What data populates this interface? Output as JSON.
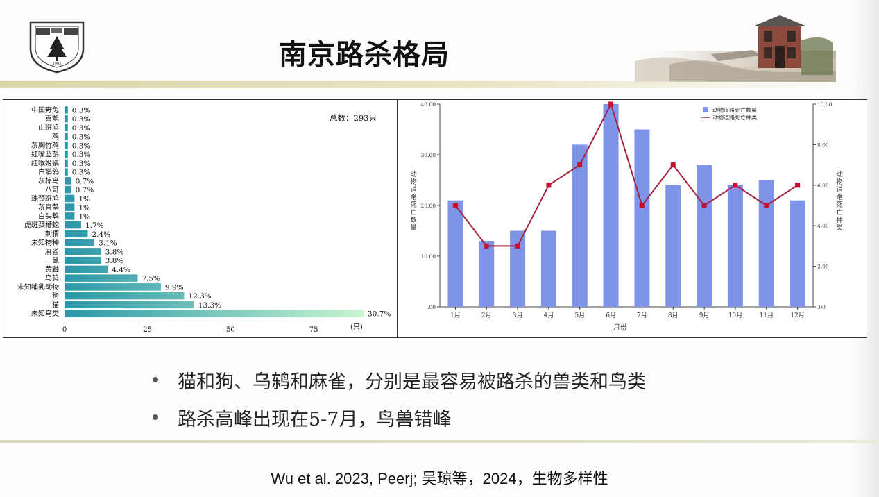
{
  "slide": {
    "title": "南京路杀格局",
    "logo_text": "NANJING UNIVERSITY",
    "logo_year": "1902",
    "bullets": [
      "猫和狗、乌鸫和麻雀，分别是最容易被路杀的兽类和鸟类",
      "路杀高峰出现在5-7月，鸟兽错峰"
    ],
    "citation": "Wu et al. 2023, Peerj; 吴琼等，2024，生物多样性"
  },
  "chart_data": [
    {
      "type": "bar",
      "orientation": "horizontal",
      "categories": [
        "中国野兔",
        "喜鹊",
        "山斑鸠",
        "鸡",
        "灰胸竹鸡",
        "红嘴蓝鹊",
        "红喉姬鹟",
        "白鹡鸰",
        "灰椋鸟",
        "八哥",
        "珠颈斑鸠",
        "灰喜鹊",
        "白头鹎",
        "虎斑颈槽蛇",
        "刺猬",
        "未知物种",
        "麻雀",
        "鼠",
        "黄鼬",
        "乌鸫",
        "未知哺乳动物",
        "狗",
        "猫",
        "未知鸟类"
      ],
      "values": [
        1,
        1,
        1,
        1,
        1,
        1,
        1,
        1,
        2,
        2,
        3,
        3,
        3,
        5,
        7,
        9,
        11,
        11,
        13,
        22,
        29,
        36,
        39,
        90
      ],
      "labels": [
        "0.3%",
        "0.3%",
        "0.3%",
        "0.3%",
        "0.3%",
        "0.3%",
        "0.3%",
        "0.3%",
        "0.7%",
        "0.7%",
        "1%",
        "1%",
        "1%",
        "1.7%",
        "2.4%",
        "3.1%",
        "3.8%",
        "3.8%",
        "4.4%",
        "7.5%",
        "9.9%",
        "12.3%",
        "13.3%",
        "30.7%"
      ],
      "xlim": [
        0,
        90
      ],
      "xticks": [
        "0",
        "25",
        "50",
        "75"
      ],
      "xunit": "(只)",
      "annotation": "总数：293只",
      "colors": {
        "start": "#2b97a9",
        "end": "#c8f6cf"
      }
    },
    {
      "type": "bar+line",
      "categories": [
        "1月",
        "2月",
        "3月",
        "4月",
        "5月",
        "6月",
        "7月",
        "8月",
        "9月",
        "10月",
        "11月",
        "12月"
      ],
      "xlabel": "月份",
      "series": [
        {
          "name": "动物道路死亡数量",
          "kind": "bar",
          "axis": "left",
          "color": "#7f94e8",
          "values": [
            21,
            13,
            15,
            15,
            32,
            40,
            35,
            24,
            28,
            24,
            25,
            21
          ]
        },
        {
          "name": "动物道路死亡种类",
          "kind": "line",
          "axis": "right",
          "color": "#a5243d",
          "values": [
            5,
            3,
            3,
            6,
            7,
            10,
            5,
            7,
            5,
            6,
            5,
            6
          ]
        }
      ],
      "ylabel_left": "动物道路死亡数量",
      "ylabel_right": "动物道路死亡种类",
      "ylim_left": [
        0,
        40
      ],
      "ylim_right": [
        0,
        10
      ],
      "yticks_left": [
        ".00",
        "10.00",
        "20.00",
        "30.00",
        "40.00"
      ],
      "yticks_right": [
        ".00",
        "2.00",
        "4.00",
        "6.00",
        "8.00",
        "10.00"
      ],
      "legend_position": "top-right"
    }
  ]
}
